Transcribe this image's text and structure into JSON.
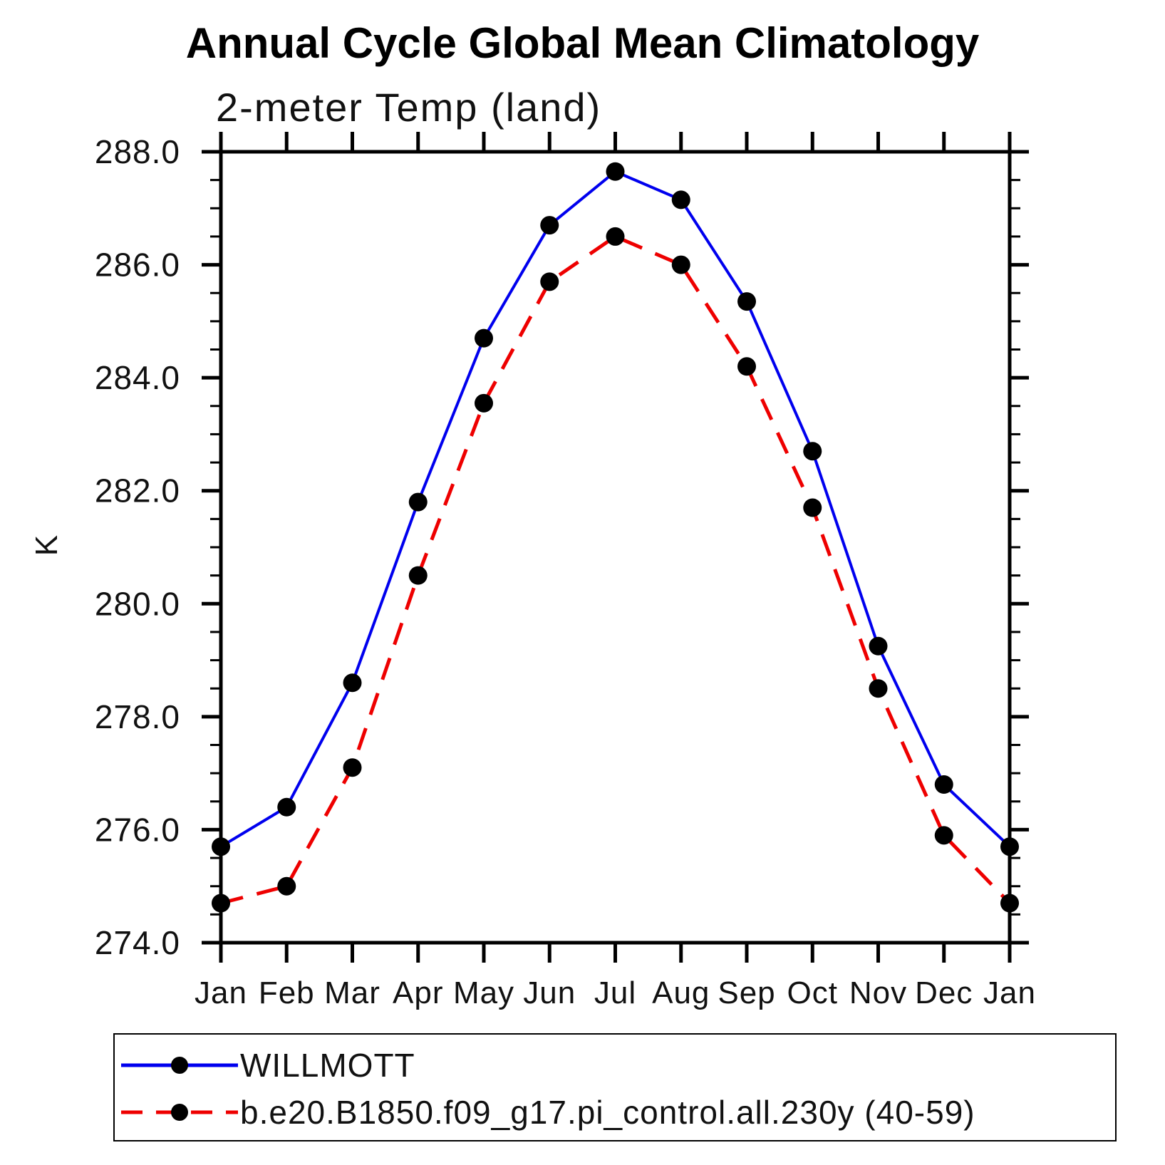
{
  "header": {
    "title": "Annual Cycle Global Mean Climatology",
    "subtitle": "2-meter Temp (land)"
  },
  "chart_data": {
    "type": "line",
    "title": "Annual Cycle Global Mean Climatology",
    "subtitle": "2-meter Temp (land)",
    "xlabel": "",
    "ylabel": "K",
    "x_tick_labels": [
      "Jan",
      "Feb",
      "Mar",
      "Apr",
      "May",
      "Jun",
      "Jul",
      "Aug",
      "Sep",
      "Oct",
      "Nov",
      "Dec",
      "Jan"
    ],
    "ylim": [
      274.0,
      288.0
    ],
    "y_major_step": 2.0,
    "y_minor_step": 0.5,
    "y_tick_labels": [
      "274.0",
      "276.0",
      "278.0",
      "280.0",
      "282.0",
      "284.0",
      "286.0",
      "288.0"
    ],
    "grid": false,
    "legend_position": "bottom",
    "series": [
      {
        "name": "WILLMOTT",
        "line_color": "#0000ee",
        "line_style": "solid",
        "marker": "circle",
        "marker_color": "#000000",
        "values": [
          275.7,
          276.4,
          278.6,
          281.8,
          284.7,
          286.7,
          287.65,
          287.15,
          285.35,
          282.7,
          279.25,
          276.8,
          275.7
        ]
      },
      {
        "name": "b.e20.B1850.f09_g17.pi_control.all.230y (40-59)",
        "line_color": "#ee0000",
        "line_style": "dashed",
        "marker": "circle",
        "marker_color": "#000000",
        "values": [
          274.7,
          275.0,
          277.1,
          280.5,
          283.55,
          285.7,
          286.5,
          286.0,
          284.2,
          281.7,
          278.5,
          275.9,
          274.7
        ]
      }
    ],
    "axis_color": "#000000",
    "text_color": "#111111"
  }
}
